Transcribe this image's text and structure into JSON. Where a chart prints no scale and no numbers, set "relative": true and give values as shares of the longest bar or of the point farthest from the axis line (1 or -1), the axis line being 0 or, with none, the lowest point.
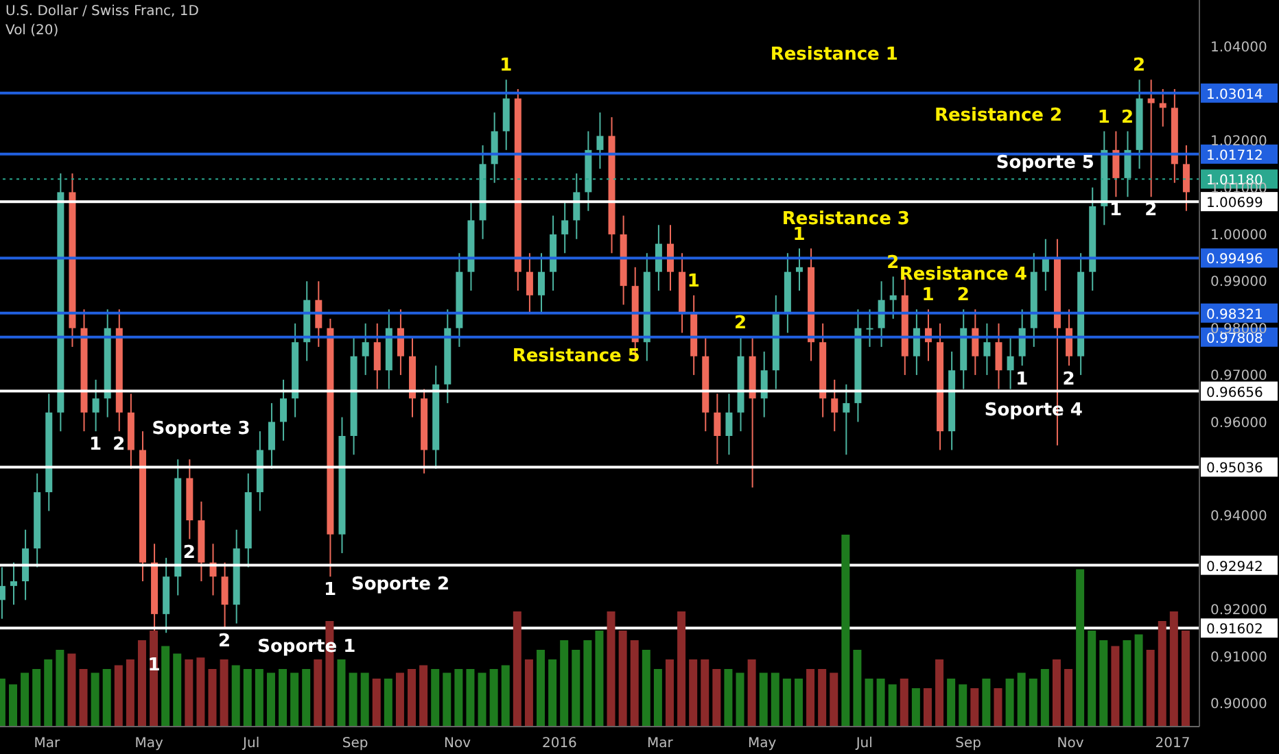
{
  "chart_data": [
    {
      "type": "candlestick",
      "title": "U.S. Dollar / Swiss Franc, 1D",
      "subtitle": "Vol (20)",
      "x": [
        "2015-02-02",
        "2015-02-09",
        "2015-02-16",
        "2015-02-23",
        "2015-03-02",
        "2015-03-09",
        "2015-03-16",
        "2015-03-23",
        "2015-03-30",
        "2015-04-06",
        "2015-04-13",
        "2015-04-20",
        "2015-04-27",
        "2015-05-04",
        "2015-05-11",
        "2015-05-18",
        "2015-05-25",
        "2015-06-01",
        "2015-06-08",
        "2015-06-15",
        "2015-06-22",
        "2015-06-29",
        "2015-07-06",
        "2015-07-13",
        "2015-07-20",
        "2015-07-27",
        "2015-08-03",
        "2015-08-10",
        "2015-08-17",
        "2015-08-24",
        "2015-08-31",
        "2015-09-07",
        "2015-09-14",
        "2015-09-21",
        "2015-09-28",
        "2015-10-05",
        "2015-10-12",
        "2015-10-19",
        "2015-10-26",
        "2015-11-02",
        "2015-11-09",
        "2015-11-16",
        "2015-11-23",
        "2015-11-30",
        "2015-12-07",
        "2015-12-14",
        "2015-12-21",
        "2015-12-28",
        "2016-01-04",
        "2016-01-11",
        "2016-01-18",
        "2016-01-25",
        "2016-02-01",
        "2016-02-08",
        "2016-02-15",
        "2016-02-22",
        "2016-02-29",
        "2016-03-07",
        "2016-03-14",
        "2016-03-21",
        "2016-03-28",
        "2016-04-04",
        "2016-04-11",
        "2016-04-18",
        "2016-04-25",
        "2016-05-02",
        "2016-05-09",
        "2016-05-16",
        "2016-05-23",
        "2016-05-30",
        "2016-06-06",
        "2016-06-13",
        "2016-06-20",
        "2016-06-27",
        "2016-07-04",
        "2016-07-11",
        "2016-07-18",
        "2016-07-25",
        "2016-08-01",
        "2016-08-08",
        "2016-08-15",
        "2016-08-22",
        "2016-08-29",
        "2016-09-05",
        "2016-09-12",
        "2016-09-19",
        "2016-09-26",
        "2016-10-03",
        "2016-10-10",
        "2016-10-17",
        "2016-10-24",
        "2016-10-31",
        "2016-11-07",
        "2016-11-14",
        "2016-11-21",
        "2016-11-28",
        "2016-12-05",
        "2016-12-12",
        "2016-12-19",
        "2016-12-26",
        "2017-01-02",
        "2017-01-09"
      ],
      "ohlc": [
        [
          0.922,
          0.929,
          0.918,
          0.925
        ],
        [
          0.925,
          0.93,
          0.921,
          0.926
        ],
        [
          0.926,
          0.937,
          0.922,
          0.933
        ],
        [
          0.933,
          0.949,
          0.929,
          0.945
        ],
        [
          0.945,
          0.966,
          0.941,
          0.962
        ],
        [
          0.962,
          1.013,
          0.958,
          1.009
        ],
        [
          1.009,
          1.013,
          0.976,
          0.98
        ],
        [
          0.98,
          0.984,
          0.958,
          0.962
        ],
        [
          0.962,
          0.969,
          0.958,
          0.965
        ],
        [
          0.965,
          0.984,
          0.961,
          0.98
        ],
        [
          0.98,
          0.984,
          0.958,
          0.962
        ],
        [
          0.962,
          0.966,
          0.95,
          0.954
        ],
        [
          0.954,
          0.958,
          0.926,
          0.93
        ],
        [
          0.93,
          0.934,
          0.911,
          0.919
        ],
        [
          0.919,
          0.931,
          0.915,
          0.927
        ],
        [
          0.927,
          0.952,
          0.923,
          0.948
        ],
        [
          0.948,
          0.952,
          0.935,
          0.939
        ],
        [
          0.939,
          0.943,
          0.926,
          0.93
        ],
        [
          0.93,
          0.934,
          0.923,
          0.927
        ],
        [
          0.927,
          0.93,
          0.916,
          0.921
        ],
        [
          0.921,
          0.937,
          0.917,
          0.933
        ],
        [
          0.933,
          0.949,
          0.929,
          0.945
        ],
        [
          0.945,
          0.958,
          0.941,
          0.954
        ],
        [
          0.954,
          0.964,
          0.95,
          0.96
        ],
        [
          0.96,
          0.969,
          0.956,
          0.965
        ],
        [
          0.965,
          0.981,
          0.961,
          0.977
        ],
        [
          0.977,
          0.99,
          0.973,
          0.986
        ],
        [
          0.986,
          0.99,
          0.976,
          0.98
        ],
        [
          0.98,
          0.982,
          0.927,
          0.936
        ],
        [
          0.936,
          0.961,
          0.932,
          0.957
        ],
        [
          0.957,
          0.978,
          0.953,
          0.974
        ],
        [
          0.974,
          0.981,
          0.97,
          0.977
        ],
        [
          0.977,
          0.981,
          0.967,
          0.971
        ],
        [
          0.971,
          0.984,
          0.967,
          0.98
        ],
        [
          0.98,
          0.984,
          0.97,
          0.974
        ],
        [
          0.974,
          0.978,
          0.961,
          0.965
        ],
        [
          0.965,
          0.967,
          0.949,
          0.954
        ],
        [
          0.954,
          0.972,
          0.95,
          0.968
        ],
        [
          0.968,
          0.984,
          0.964,
          0.98
        ],
        [
          0.98,
          0.996,
          0.976,
          0.992
        ],
        [
          0.992,
          1.007,
          0.988,
          1.003
        ],
        [
          1.003,
          1.019,
          0.999,
          1.015
        ],
        [
          1.015,
          1.026,
          1.011,
          1.022
        ],
        [
          1.022,
          1.033,
          1.018,
          1.029
        ],
        [
          1.029,
          1.031,
          0.988,
          0.992
        ],
        [
          0.992,
          0.996,
          0.983,
          0.987
        ],
        [
          0.987,
          0.996,
          0.983,
          0.992
        ],
        [
          0.992,
          1.004,
          0.988,
          1.0
        ],
        [
          1.0,
          1.007,
          0.996,
          1.003
        ],
        [
          1.003,
          1.013,
          0.999,
          1.009
        ],
        [
          1.009,
          1.022,
          1.005,
          1.018
        ],
        [
          1.018,
          1.026,
          1.014,
          1.021
        ],
        [
          1.021,
          1.025,
          0.996,
          1.0
        ],
        [
          1.0,
          1.004,
          0.985,
          0.989
        ],
        [
          0.989,
          0.993,
          0.973,
          0.977
        ],
        [
          0.977,
          0.996,
          0.973,
          0.992
        ],
        [
          0.992,
          1.002,
          0.988,
          0.998
        ],
        [
          0.998,
          1.002,
          0.988,
          0.992
        ],
        [
          0.992,
          0.996,
          0.979,
          0.983
        ],
        [
          0.983,
          0.987,
          0.97,
          0.974
        ],
        [
          0.974,
          0.978,
          0.958,
          0.962
        ],
        [
          0.962,
          0.966,
          0.951,
          0.957
        ],
        [
          0.957,
          0.966,
          0.953,
          0.962
        ],
        [
          0.962,
          0.978,
          0.958,
          0.974
        ],
        [
          0.974,
          0.978,
          0.946,
          0.965
        ],
        [
          0.965,
          0.975,
          0.961,
          0.971
        ],
        [
          0.971,
          0.987,
          0.967,
          0.983
        ],
        [
          0.983,
          0.996,
          0.979,
          0.992
        ],
        [
          0.992,
          0.997,
          0.988,
          0.993
        ],
        [
          0.993,
          0.997,
          0.973,
          0.977
        ],
        [
          0.977,
          0.981,
          0.961,
          0.965
        ],
        [
          0.965,
          0.969,
          0.958,
          0.962
        ],
        [
          0.962,
          0.968,
          0.953,
          0.964
        ],
        [
          0.964,
          0.984,
          0.96,
          0.98
        ],
        [
          0.98,
          0.984,
          0.976,
          0.98
        ],
        [
          0.98,
          0.99,
          0.976,
          0.986
        ],
        [
          0.986,
          0.991,
          0.982,
          0.987
        ],
        [
          0.987,
          0.991,
          0.97,
          0.974
        ],
        [
          0.974,
          0.984,
          0.97,
          0.98
        ],
        [
          0.98,
          0.984,
          0.973,
          0.977
        ],
        [
          0.977,
          0.981,
          0.954,
          0.958
        ],
        [
          0.958,
          0.975,
          0.954,
          0.971
        ],
        [
          0.971,
          0.984,
          0.967,
          0.98
        ],
        [
          0.98,
          0.984,
          0.97,
          0.974
        ],
        [
          0.974,
          0.981,
          0.97,
          0.977
        ],
        [
          0.977,
          0.981,
          0.967,
          0.971
        ],
        [
          0.971,
          0.978,
          0.967,
          0.974
        ],
        [
          0.974,
          0.984,
          0.972,
          0.98
        ],
        [
          0.98,
          0.996,
          0.976,
          0.992
        ],
        [
          0.992,
          0.999,
          0.988,
          0.995
        ],
        [
          0.995,
          0.999,
          0.955,
          0.98
        ],
        [
          0.98,
          0.984,
          0.972,
          0.974
        ],
        [
          0.974,
          0.996,
          0.97,
          0.992
        ],
        [
          0.992,
          1.01,
          0.988,
          1.006
        ],
        [
          1.006,
          1.022,
          1.002,
          1.018
        ],
        [
          1.018,
          1.022,
          1.008,
          1.012
        ],
        [
          1.012,
          1.022,
          1.008,
          1.018
        ],
        [
          1.018,
          1.033,
          1.014,
          1.029
        ],
        [
          1.029,
          1.033,
          1.008,
          1.028
        ],
        [
          1.028,
          1.031,
          1.023,
          1.027
        ],
        [
          1.027,
          1.031,
          1.011,
          1.015
        ],
        [
          1.015,
          1.019,
          1.005,
          1.009
        ]
      ],
      "colors": [
        "#4db6a2",
        "#4db6a2",
        "#4db6a2",
        "#4db6a2",
        "#4db6a2",
        "#4db6a2",
        "#ef6a5a",
        "#ef6a5a",
        "#4db6a2",
        "#4db6a2",
        "#ef6a5a",
        "#ef6a5a",
        "#ef6a5a",
        "#ef6a5a",
        "#4db6a2",
        "#4db6a2",
        "#ef6a5a",
        "#ef6a5a",
        "#ef6a5a",
        "#ef6a5a",
        "#4db6a2",
        "#4db6a2",
        "#4db6a2",
        "#4db6a2",
        "#4db6a2",
        "#4db6a2",
        "#4db6a2",
        "#ef6a5a",
        "#ef6a5a",
        "#4db6a2",
        "#4db6a2",
        "#4db6a2",
        "#ef6a5a",
        "#4db6a2",
        "#ef6a5a",
        "#ef6a5a",
        "#ef6a5a",
        "#4db6a2",
        "#4db6a2",
        "#4db6a2",
        "#4db6a2",
        "#4db6a2",
        "#4db6a2",
        "#4db6a2",
        "#ef6a5a",
        "#ef6a5a",
        "#4db6a2",
        "#4db6a2",
        "#4db6a2",
        "#4db6a2",
        "#4db6a2",
        "#4db6a2",
        "#ef6a5a",
        "#ef6a5a",
        "#ef6a5a",
        "#4db6a2",
        "#4db6a2",
        "#ef6a5a",
        "#ef6a5a",
        "#ef6a5a",
        "#ef6a5a",
        "#ef6a5a",
        "#4db6a2",
        "#4db6a2",
        "#ef6a5a",
        "#4db6a2",
        "#4db6a2",
        "#4db6a2",
        "#4db6a2",
        "#ef6a5a",
        "#ef6a5a",
        "#ef6a5a",
        "#4db6a2",
        "#4db6a2",
        "#4db6a2",
        "#4db6a2",
        "#4db6a2",
        "#ef6a5a",
        "#4db6a2",
        "#ef6a5a",
        "#ef6a5a",
        "#4db6a2",
        "#4db6a2",
        "#ef6a5a",
        "#4db6a2",
        "#ef6a5a",
        "#4db6a2",
        "#4db6a2",
        "#4db6a2",
        "#4db6a2",
        "#ef6a5a",
        "#ef6a5a",
        "#4db6a2",
        "#4db6a2",
        "#4db6a2",
        "#ef6a5a",
        "#4db6a2",
        "#4db6a2",
        "#ef6a5a",
        "#ef6a5a",
        "#ef6a5a",
        "#ef6a5a"
      ],
      "xlim": [
        "2015-02-01",
        "2017-01-17"
      ],
      "xticks": [
        {
          "value": "2015-03-01",
          "label": "Mar"
        },
        {
          "value": "2015-05-01",
          "label": "May"
        },
        {
          "value": "2015-07-01",
          "label": "Jul"
        },
        {
          "value": "2015-09-01",
          "label": "Sep"
        },
        {
          "value": "2015-11-01",
          "label": "Nov"
        },
        {
          "value": "2016-01-01",
          "label": "2016"
        },
        {
          "value": "2016-03-01",
          "label": "Mar"
        },
        {
          "value": "2016-05-01",
          "label": "May"
        },
        {
          "value": "2016-07-01",
          "label": "Jul"
        },
        {
          "value": "2016-09-01",
          "label": "Sep"
        },
        {
          "value": "2016-11-01",
          "label": "Nov"
        },
        {
          "value": "2017-01-01",
          "label": "2017"
        }
      ],
      "ylim": [
        0.895,
        1.05
      ],
      "yticks": [
        {
          "value": 0.9,
          "label": "0.90000"
        },
        {
          "value": 0.91,
          "label": "0.91000"
        },
        {
          "value": 0.92,
          "label": "0.92000"
        },
        {
          "value": 0.93,
          "label": null
        },
        {
          "value": 0.94,
          "label": "0.94000"
        },
        {
          "value": 0.95,
          "label": null
        },
        {
          "value": 0.96,
          "label": "0.96000"
        },
        {
          "value": 0.97,
          "label": "0.97000"
        },
        {
          "value": 0.98,
          "label": "0.98000"
        },
        {
          "value": 0.99,
          "label": "0.99000"
        },
        {
          "value": 1.0,
          "label": "1.00000"
        },
        {
          "value": 1.01,
          "label": "1.01000"
        },
        {
          "value": 1.02,
          "label": "1.02000"
        },
        {
          "value": 1.03,
          "label": null
        },
        {
          "value": 1.04,
          "label": "1.04000"
        }
      ],
      "ref_lines": [
        {
          "axis": "y",
          "value": 1.03014,
          "label": "1.03014",
          "color": "#2160e0"
        },
        {
          "axis": "y",
          "value": 1.01712,
          "label": "1.01712",
          "color": "#2160e0"
        },
        {
          "axis": "y",
          "value": 1.0118,
          "label": "1.01180",
          "color": "#2aa88f",
          "line_style": "dotted"
        },
        {
          "axis": "y",
          "value": 1.00699,
          "label": "1.00699",
          "color": "#ffffff"
        },
        {
          "axis": "y",
          "value": 0.99496,
          "label": "0.99496",
          "color": "#2160e0"
        },
        {
          "axis": "y",
          "value": 0.98321,
          "label": "0.98321",
          "color": "#2160e0"
        },
        {
          "axis": "y",
          "value": 0.97808,
          "label": "0.97808",
          "color": "#2160e0"
        },
        {
          "axis": "y",
          "value": 0.96656,
          "label": "0.96656",
          "color": "#ffffff"
        },
        {
          "axis": "y",
          "value": 0.95036,
          "label": "0.95036",
          "color": "#ffffff"
        },
        {
          "axis": "y",
          "value": 0.92942,
          "label": "0.92942",
          "color": "#ffffff"
        },
        {
          "axis": "y",
          "value": 0.91602,
          "label": "0.91602",
          "color": "#ffffff"
        }
      ],
      "annotations": [
        {
          "text": "1",
          "x": "2015-11-30",
          "y": 1.033
        },
        {
          "text": "Resistance 1",
          "x": "2016-06-13",
          "y": 1.03014
        },
        {
          "text": "2",
          "x": "2016-12-12",
          "y": 1.033
        },
        {
          "text": "Resistance 2",
          "x": "2016-09-19",
          "y": 1.01712
        },
        {
          "text": "1",
          "x": "2016-11-21",
          "y": 1.022
        },
        {
          "text": "2",
          "x": "2016-12-05",
          "y": 1.022
        },
        {
          "text": "Soporte 5",
          "x": "2016-10-17",
          "y": 1.00699
        },
        {
          "text": "1",
          "x": "2016-11-28",
          "y": 1.008
        },
        {
          "text": "2",
          "x": "2016-12-19",
          "y": 1.008
        },
        {
          "text": "Resistance 3",
          "x": "2016-06-20",
          "y": 0.99496
        },
        {
          "text": "1",
          "x": "2016-05-23",
          "y": 0.997
        },
        {
          "text": "2",
          "x": "2016-07-18",
          "y": 0.991
        },
        {
          "text": "Resistance 4",
          "x": "2016-08-29",
          "y": 0.98321
        },
        {
          "text": "1",
          "x": "2016-08-08",
          "y": 0.984
        },
        {
          "text": "2",
          "x": "2016-08-29",
          "y": 0.984
        },
        {
          "text": "1",
          "x": "2016-03-21",
          "y": 0.987
        },
        {
          "text": "2",
          "x": "2016-04-18",
          "y": 0.978
        },
        {
          "text": "Resistance 5",
          "x": "2016-01-11",
          "y": 0.97808
        },
        {
          "text": "1",
          "x": "2016-10-03",
          "y": 0.972
        },
        {
          "text": "2",
          "x": "2016-10-31",
          "y": 0.972
        },
        {
          "text": "Soporte 4",
          "x": "2016-10-10",
          "y": 0.96656
        },
        {
          "text": "1",
          "x": "2015-03-30",
          "y": 0.958
        },
        {
          "text": "2",
          "x": "2015-04-13",
          "y": 0.958
        },
        {
          "text": "Soporte 3",
          "x": "2015-06-01",
          "y": 0.95036
        },
        {
          "text": "2",
          "x": "2015-05-25",
          "y": 0.935
        },
        {
          "text": "1",
          "x": "2015-08-17",
          "y": 0.927
        },
        {
          "text": "Soporte 2",
          "x": "2015-09-28",
          "y": 0.92942
        },
        {
          "text": "1",
          "x": "2015-05-04",
          "y": 0.911
        },
        {
          "text": "2",
          "x": "2015-06-15",
          "y": 0.916
        },
        {
          "text": "Soporte 1",
          "x": "2015-08-03",
          "y": 0.91602
        }
      ]
    },
    {
      "type": "bar",
      "relative": true,
      "stacked": true,
      "tick_labels": false,
      "x": [
        "2015-02-02",
        "2015-02-09",
        "2015-02-16",
        "2015-02-23",
        "2015-03-02",
        "2015-03-09",
        "2015-03-16",
        "2015-03-23",
        "2015-03-30",
        "2015-04-06",
        "2015-04-13",
        "2015-04-20",
        "2015-04-27",
        "2015-05-04",
        "2015-05-11",
        "2015-05-18",
        "2015-05-25",
        "2015-06-01",
        "2015-06-08",
        "2015-06-15",
        "2015-06-22",
        "2015-06-29",
        "2015-07-06",
        "2015-07-13",
        "2015-07-20",
        "2015-07-27",
        "2015-08-03",
        "2015-08-10",
        "2015-08-17",
        "2015-08-24",
        "2015-08-31",
        "2015-09-07",
        "2015-09-14",
        "2015-09-21",
        "2015-09-28",
        "2015-10-05",
        "2015-10-12",
        "2015-10-19",
        "2015-10-26",
        "2015-11-02",
        "2015-11-09",
        "2015-11-16",
        "2015-11-23",
        "2015-11-30",
        "2015-12-07",
        "2015-12-14",
        "2015-12-21",
        "2015-12-28",
        "2016-01-04",
        "2016-01-11",
        "2016-01-18",
        "2016-01-25",
        "2016-02-01",
        "2016-02-08",
        "2016-02-15",
        "2016-02-22",
        "2016-02-29",
        "2016-03-07",
        "2016-03-14",
        "2016-03-21",
        "2016-03-28",
        "2016-04-04",
        "2016-04-11",
        "2016-04-18",
        "2016-04-25",
        "2016-05-02",
        "2016-05-09",
        "2016-05-16",
        "2016-05-23",
        "2016-05-30",
        "2016-06-06",
        "2016-06-13",
        "2016-06-20",
        "2016-06-27",
        "2016-07-04",
        "2016-07-11",
        "2016-07-18",
        "2016-07-25",
        "2016-08-01",
        "2016-08-08",
        "2016-08-15",
        "2016-08-22",
        "2016-08-29",
        "2016-09-05",
        "2016-09-12",
        "2016-09-19",
        "2016-09-26",
        "2016-10-03",
        "2016-10-10",
        "2016-10-17",
        "2016-10-24",
        "2016-10-31",
        "2016-11-07",
        "2016-11-14",
        "2016-11-21",
        "2016-11-28",
        "2016-12-05",
        "2016-12-12",
        "2016-12-19",
        "2016-12-26",
        "2017-01-02",
        "2017-01-09"
      ],
      "xlim": [
        "2015-02-01",
        "2017-01-17"
      ],
      "series": [
        {
          "color": "#1e7b1e",
          "values": [
            0.25,
            0.22,
            0.28,
            0.3,
            0.35,
            0.4,
            null,
            null,
            0.28,
            0.3,
            null,
            null,
            null,
            null,
            0.42,
            0.38,
            null,
            null,
            null,
            null,
            0.32,
            0.3,
            0.3,
            0.28,
            0.3,
            0.28,
            0.3,
            null,
            null,
            0.35,
            0.28,
            0.28,
            null,
            0.25,
            null,
            null,
            null,
            0.3,
            0.28,
            0.3,
            0.3,
            0.28,
            0.3,
            0.32,
            null,
            null,
            0.4,
            0.35,
            0.45,
            0.4,
            0.45,
            0.5,
            null,
            null,
            null,
            0.4,
            0.3,
            null,
            null,
            null,
            null,
            null,
            0.3,
            0.28,
            null,
            0.28,
            0.28,
            0.25,
            0.25,
            null,
            null,
            null,
            1,
            0.4,
            0.25,
            0.25,
            0.22,
            null,
            0.2,
            null,
            null,
            0.25,
            0.22,
            null,
            0.25,
            null,
            0.25,
            0.28,
            0.25,
            0.3,
            null,
            null,
            0.82,
            0.5,
            0.45,
            null,
            0.45,
            0.48,
            null,
            null,
            null,
            null
          ]
        },
        {
          "color": "#8c2a2a",
          "values": [
            null,
            null,
            null,
            null,
            null,
            null,
            0.38,
            0.3,
            null,
            null,
            0.32,
            0.35,
            0.45,
            0.5,
            null,
            null,
            0.35,
            0.36,
            0.3,
            0.35,
            null,
            null,
            null,
            null,
            null,
            null,
            null,
            0.35,
            0.55,
            null,
            null,
            null,
            0.25,
            null,
            0.28,
            0.3,
            0.32,
            null,
            null,
            null,
            null,
            null,
            null,
            null,
            0.6,
            0.35,
            null,
            null,
            null,
            null,
            null,
            null,
            0.6,
            0.5,
            0.45,
            null,
            null,
            0.35,
            0.6,
            0.35,
            0.35,
            0.3,
            null,
            null,
            0.35,
            null,
            null,
            null,
            null,
            0.3,
            0.3,
            0.28,
            null,
            null,
            null,
            null,
            null,
            0.25,
            null,
            0.2,
            0.35,
            null,
            null,
            0.2,
            null,
            0.2,
            null,
            null,
            null,
            null,
            0.35,
            0.3,
            null,
            null,
            null,
            0.42,
            null,
            null,
            0.4,
            0.55,
            0.6,
            0.5
          ]
        }
      ]
    }
  ]
}
